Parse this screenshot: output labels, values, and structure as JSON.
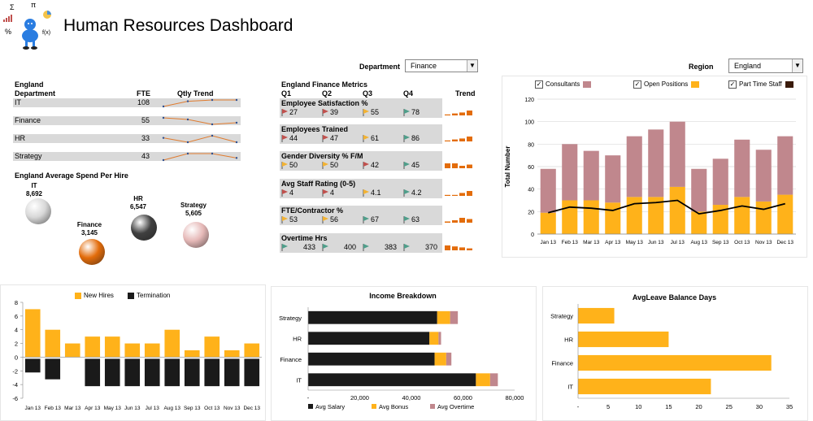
{
  "header": {
    "title": "Human Resources Dashboard",
    "logo_symbols": [
      "Σ",
      "π",
      "%",
      "f(x)"
    ]
  },
  "department_filter": {
    "label": "Department",
    "value": "Finance"
  },
  "region_filter": {
    "label": "Region",
    "value": "England"
  },
  "fte_table": {
    "region": "England",
    "col_department": "Department",
    "col_fte": "FTE",
    "col_trend": "Qtly Trend",
    "rows": [
      {
        "department": "IT",
        "fte": "108",
        "trend": [
          2,
          6,
          7,
          7
        ]
      },
      {
        "department": "Finance",
        "fte": "55",
        "trend": [
          7,
          6,
          3,
          4
        ]
      },
      {
        "department": "HR",
        "fte": "33",
        "trend": [
          6,
          4,
          7,
          4
        ]
      },
      {
        "department": "Strategy",
        "fte": "43",
        "trend": [
          3,
          6,
          6,
          4
        ]
      }
    ]
  },
  "spend_per_hire": {
    "title": "England Average Spend Per Hire",
    "items": [
      {
        "name": "IT",
        "value": "8,692",
        "color": "#d8d8d8"
      },
      {
        "name": "Finance",
        "value": "3,145",
        "color": "#e36c0a"
      },
      {
        "name": "HR",
        "value": "6,547",
        "color": "#404040"
      },
      {
        "name": "Strategy",
        "value": "5,605",
        "color": "#e6b9b8"
      }
    ]
  },
  "metrics": {
    "title": "England Finance Metrics",
    "quarters": [
      "Q1",
      "Q2",
      "Q3",
      "Q4"
    ],
    "trend_label": "Trend",
    "flag_colors": {
      "red": "#c0504d",
      "yellow": "#f2b233",
      "green": "#4f9e8a"
    },
    "groups": [
      {
        "name": "Employee Satisfaction %",
        "values": [
          "27",
          "39",
          "55",
          "78"
        ],
        "flags": [
          "red",
          "red",
          "yellow",
          "green"
        ],
        "trend": [
          1,
          2,
          3,
          5
        ]
      },
      {
        "name": "Employees Trained",
        "values": [
          "44",
          "47",
          "61",
          "86"
        ],
        "flags": [
          "red",
          "red",
          "yellow",
          "green"
        ],
        "trend": [
          1,
          2,
          3,
          5
        ]
      },
      {
        "name": "Gender Diversity % F/M",
        "values": [
          "50",
          "50",
          "42",
          "45"
        ],
        "flags": [
          "yellow",
          "yellow",
          "red",
          "green"
        ],
        "trend": [
          4,
          4,
          2,
          3
        ]
      },
      {
        "name": "Avg Staff Rating (0-5)",
        "values": [
          "4",
          "4",
          "4.1",
          "4.2"
        ],
        "flags": [
          "red",
          "red",
          "yellow",
          "green"
        ],
        "trend": [
          1,
          1,
          3,
          5
        ]
      },
      {
        "name": "FTE/Contractor %",
        "values": [
          "53",
          "56",
          "67",
          "63"
        ],
        "flags": [
          "yellow",
          "yellow",
          "green",
          "green"
        ],
        "trend": [
          1,
          2,
          4,
          3
        ]
      },
      {
        "name": "Overtime Hrs",
        "values": [
          "433",
          "400",
          "383",
          "370"
        ],
        "flags": [
          "green",
          "green",
          "green",
          "green"
        ],
        "trend": [
          5,
          4,
          3,
          2
        ]
      }
    ]
  },
  "chart_data": [
    {
      "type": "bar",
      "subtype": "stacked-bar-with-line",
      "categories": [
        "Jan 13",
        "Feb 13",
        "Mar 13",
        "Apr 13",
        "May 13",
        "Jun 13",
        "Jul 13",
        "Aug 13",
        "Sep 13",
        "Oct 13",
        "Nov 13",
        "Dec 13"
      ],
      "series": [
        {
          "name": "Open Positions",
          "type": "bar",
          "color": "#ffb21a",
          "values": [
            19,
            30,
            30,
            28,
            33,
            33,
            42,
            20,
            26,
            33,
            29,
            35
          ]
        },
        {
          "name": "Consultants",
          "type": "bar",
          "color": "#c0878d",
          "values": [
            39,
            50,
            44,
            42,
            54,
            60,
            58,
            38,
            41,
            51,
            46,
            52
          ]
        },
        {
          "name": "Part Time Staff",
          "type": "line",
          "color": "#000000",
          "values": [
            19,
            24,
            23,
            21,
            27,
            28,
            30,
            18,
            21,
            25,
            22,
            27
          ]
        }
      ],
      "legend_checked": [
        true,
        true,
        true
      ],
      "ylabel": "Total Number",
      "ylim": [
        0,
        120
      ],
      "yticks": [
        0,
        20,
        40,
        60,
        80,
        100,
        120
      ],
      "grid": true
    },
    {
      "type": "bar",
      "subtype": "positive-negative-columns",
      "categories": [
        "Jan 13",
        "Feb 13",
        "Mar 13",
        "Apr 13",
        "May 13",
        "Jun 13",
        "Jul 13",
        "Aug 13",
        "Sep 13",
        "Oct 13",
        "Nov 13",
        "Dec 13"
      ],
      "series": [
        {
          "name": "New Hires",
          "color": "#ffb21a",
          "values": [
            7,
            4,
            2,
            3,
            3,
            2,
            2,
            4,
            1,
            3,
            1,
            2
          ]
        },
        {
          "name": "Termination",
          "color": "#1a1a1a",
          "values": [
            -2,
            -3,
            0,
            -4,
            -4,
            -4,
            -4,
            -4,
            -4,
            -4,
            -4,
            -4
          ]
        }
      ],
      "ylim": [
        -6,
        8
      ],
      "yticks": [
        -6,
        -4,
        -2,
        0,
        2,
        4,
        6,
        8
      ],
      "legend": "top",
      "grid": false
    },
    {
      "type": "bar",
      "subtype": "stacked-horizontal",
      "title": "Income Breakdown",
      "categories": [
        "Strategy",
        "HR",
        "Finance",
        "IT"
      ],
      "series": [
        {
          "name": "Avg Salary",
          "color": "#1a1a1a",
          "values": [
            50000,
            47000,
            49000,
            65000
          ]
        },
        {
          "name": "Avg Bonus",
          "color": "#ffb21a",
          "values": [
            5000,
            3500,
            4500,
            5500
          ]
        },
        {
          "name": "Avg Overtime",
          "color": "#c0878d",
          "values": [
            3000,
            1000,
            2000,
            3000
          ]
        }
      ],
      "xlim": [
        0,
        80000
      ],
      "xticks": [
        "-",
        "20,000",
        "40,000",
        "60,000",
        "80,000"
      ],
      "legend": "bottom",
      "grid": false
    },
    {
      "type": "bar",
      "subtype": "horizontal",
      "title": "AvgLeave Balance Days",
      "categories": [
        "Strategy",
        "HR",
        "Finance",
        "IT"
      ],
      "series": [
        {
          "name": "",
          "color": "#ffb21a",
          "values": [
            6,
            15,
            32,
            22
          ]
        }
      ],
      "xlim": [
        0,
        35
      ],
      "xticks": [
        "-",
        "5",
        "10",
        "15",
        "20",
        "25",
        "30",
        "35"
      ],
      "grid": false
    }
  ]
}
